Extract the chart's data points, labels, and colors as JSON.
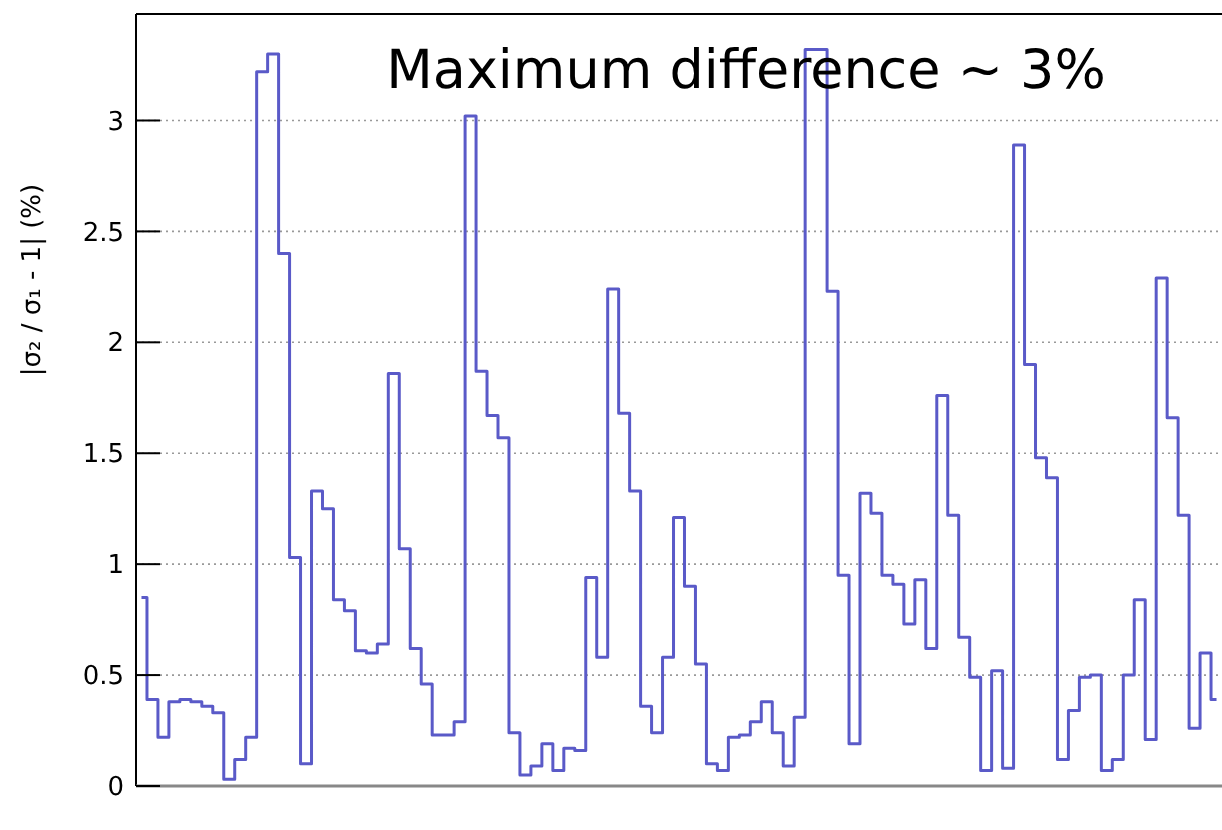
{
  "chart_data": {
    "type": "step",
    "title": "Maximum difference ~ 3%",
    "ylabel": "|σ₂ / σ₁ - 1| (%)",
    "categories": [
      null,
      null,
      null,
      null,
      null,
      null,
      null,
      null,
      null,
      null,
      null,
      null,
      null,
      null,
      null,
      null,
      null,
      null,
      null,
      null,
      null,
      null,
      null,
      null,
      null,
      null,
      null,
      null,
      null,
      null,
      null,
      null,
      null,
      null,
      null,
      null,
      null,
      null,
      null,
      null,
      null,
      null,
      null,
      null,
      null,
      null,
      null,
      null,
      null,
      null,
      null,
      null,
      null,
      null,
      null,
      null,
      null,
      null,
      null,
      null,
      null,
      null,
      null,
      null,
      null,
      null,
      null,
      null,
      null,
      null,
      null,
      null,
      null,
      null,
      null,
      null,
      null,
      null,
      null,
      null,
      null,
      null,
      null,
      null,
      null,
      null,
      null,
      null,
      null,
      null,
      null,
      null,
      null,
      null,
      null,
      null,
      null,
      null,
      null
    ],
    "series": [
      {
        "color": "#5a5ac8",
        "values": [
          0.85,
          0.39,
          0.22,
          0.38,
          0.39,
          0.38,
          0.36,
          0.33,
          0.03,
          0.12,
          0.22,
          3.22,
          3.3,
          2.4,
          1.03,
          0.1,
          1.33,
          1.25,
          0.84,
          0.79,
          0.61,
          0.6,
          0.64,
          1.86,
          1.07,
          0.62,
          0.46,
          0.23,
          0.23,
          0.29,
          3.02,
          1.87,
          1.67,
          1.57,
          0.24,
          0.05,
          0.09,
          0.19,
          0.07,
          0.17,
          0.16,
          0.94,
          0.58,
          2.24,
          1.68,
          1.33,
          0.36,
          0.24,
          0.58,
          1.21,
          0.9,
          0.55,
          0.1,
          0.07,
          0.22,
          0.23,
          0.29,
          0.38,
          0.24,
          0.09,
          0.31,
          3.32,
          3.32,
          2.23,
          0.95,
          0.19,
          1.32,
          1.23,
          0.95,
          0.91,
          0.73,
          0.93,
          0.62,
          1.76,
          1.22,
          0.67,
          0.49,
          0.07,
          0.52,
          0.08,
          2.89,
          1.9,
          1.48,
          1.39,
          0.12,
          0.34,
          0.49,
          0.5,
          0.07,
          0.12,
          0.5,
          0.84,
          0.21,
          2.29,
          1.66,
          1.22,
          0.26,
          0.6,
          0.39
        ]
      }
    ],
    "ylim": [
      0,
      3.48
    ],
    "yticks": [
      0,
      0.5,
      1,
      1.5,
      2,
      2.5,
      3
    ],
    "grid": "y",
    "tick_labels": "y"
  }
}
